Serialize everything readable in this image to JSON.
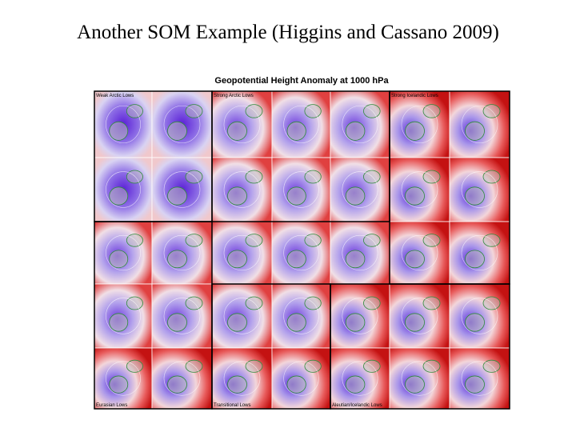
{
  "title": "Another SOM Example (Higgins and Cassano 2009)",
  "figure": {
    "title": "Geopotential Height Anomaly at 1000 hPa",
    "groups": [
      "Weak Arctic Lows",
      "Strong Arctic Lows",
      "Strong Icelandic Lows",
      "Eurasian Lows",
      "Transitional Lows",
      "Aleutian/Icelandic Lows"
    ]
  }
}
